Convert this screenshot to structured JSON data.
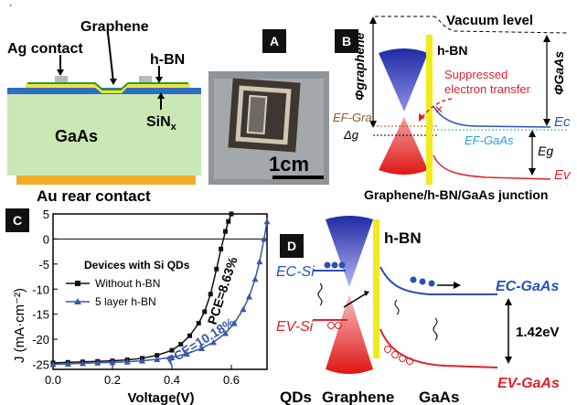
{
  "panel_labels": {
    "a": "A",
    "b": "B",
    "c": "C",
    "d": "D"
  },
  "device": {
    "graphene": "Graphene",
    "ag_contact": "Ag contact",
    "hbn": "h-BN",
    "sinx": "SiN",
    "sinx_sub": "x",
    "gaas": "GaAs",
    "au_rear": "Au rear contact"
  },
  "photo": {
    "scale": "1cm"
  },
  "band_b": {
    "vacuum": "Vacuum level",
    "phi_graphene": "Φgraphene",
    "hbn": "h-BN",
    "suppressed": [
      "Suppressed",
      "electron transfer"
    ],
    "phi_gaas": "ΦGaAs",
    "ef_gra": "EF-Gra",
    "delta_g": "Δg",
    "ec": "Ec",
    "ef_gaas": "EF-GaAs",
    "eg": "Eg",
    "ev": "Ev",
    "caption": "Graphene/h-BN/GaAs junction"
  },
  "chart_data": {
    "type": "line",
    "xlabel": "Voltage(V)",
    "ylabel": "J (mA·cm⁻²)",
    "xlim": [
      0.0,
      0.72
    ],
    "ylim": [
      -26,
      5
    ],
    "xticks": [
      "0.0",
      "0.2",
      "0.4",
      "0.6"
    ],
    "yticks": [
      "5",
      "0",
      "-5",
      "-10",
      "-15",
      "-20",
      "-25"
    ],
    "legend_title": "Devices with Si QDs",
    "legend_position": "top-left",
    "series": [
      {
        "name": "Without h-BN",
        "color": "#111111",
        "marker": "square",
        "x": [
          0.0,
          0.05,
          0.1,
          0.15,
          0.2,
          0.25,
          0.3,
          0.35,
          0.4,
          0.43,
          0.46,
          0.49,
          0.51,
          0.53,
          0.55,
          0.565,
          0.58,
          0.59,
          0.6
        ],
        "y": [
          -24.7,
          -24.6,
          -24.5,
          -24.4,
          -24.3,
          -24.1,
          -23.8,
          -23.2,
          -22.2,
          -21.0,
          -19.3,
          -16.8,
          -14.5,
          -11.0,
          -6.0,
          -2.0,
          1.5,
          3.5,
          5.0
        ]
      },
      {
        "name": "5 layer h-BN",
        "color": "#3a57a6",
        "marker": "triangle",
        "x": [
          0.0,
          0.05,
          0.1,
          0.15,
          0.2,
          0.25,
          0.3,
          0.35,
          0.4,
          0.45,
          0.5,
          0.54,
          0.58,
          0.61,
          0.64,
          0.66,
          0.68,
          0.695,
          0.71,
          0.72
        ],
        "y": [
          -25.0,
          -24.9,
          -24.8,
          -24.7,
          -24.6,
          -24.5,
          -24.3,
          -24.0,
          -23.6,
          -22.9,
          -21.8,
          -20.6,
          -18.8,
          -16.8,
          -14.0,
          -11.5,
          -8.0,
          -4.5,
          0.0,
          3.5
        ]
      }
    ],
    "annotations": [
      "PCE=8.63%",
      "PCE=10.18%"
    ]
  },
  "band_d": {
    "hbn": "h-BN",
    "ec_si": "EC-Si",
    "ev_si": "EV-Si",
    "ec_gaas": "EC-GaAs",
    "ev_gaas": "EV-GaAs",
    "gap": "1.42eV",
    "bottom_qds": "QDs",
    "bottom_graphene": "Graphene",
    "bottom_gaas": "GaAs"
  }
}
